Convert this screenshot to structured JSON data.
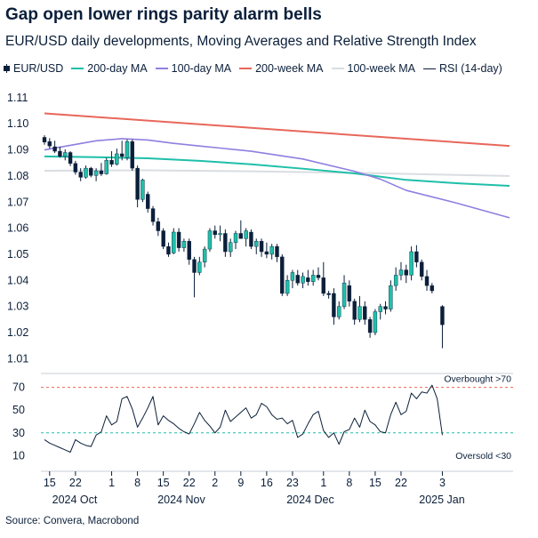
{
  "title": "Gap open lower rings parity alarm bells",
  "subtitle": "EUR/USD daily developments, Moving Averages and Relative Strength Index",
  "source": "Source: Convera, Macrobond",
  "legend": [
    {
      "label": "EUR/USD",
      "icon": "candlestick-icon",
      "color": "#0b1f3a"
    },
    {
      "label": "200-day MA",
      "color": "#1fbfa9"
    },
    {
      "label": "100-day MA",
      "color": "#8f7fe0"
    },
    {
      "label": "200-week MA",
      "color": "#e8675a"
    },
    {
      "label": "100-week MA",
      "color": "#d9dde1"
    },
    {
      "label": "RSI (14-day)",
      "color": "#0b1f3a"
    }
  ],
  "colors": {
    "up": "#1fbfa9",
    "down": "#0b1f3a",
    "ma200d": "#1fbfa9",
    "ma100d": "#8f7fe0",
    "ma200w": "#e8675a",
    "ma100w": "#d9dde1",
    "rsi": "#0b1f3a",
    "overbought": "#e8675a",
    "oversold": "#1fbfa9"
  },
  "chart_data": [
    {
      "type": "candlestick",
      "yticks": [
        "1.11",
        "1.10",
        "1.09",
        "1.08",
        "1.07",
        "1.06",
        "1.05",
        "1.04",
        "1.03",
        "1.02",
        "1.01"
      ],
      "ylim": [
        1.005,
        1.112
      ],
      "x_day_range": [
        0,
        90
      ],
      "ma_200w": {
        "x": [
          0,
          90
        ],
        "y": [
          1.104,
          1.0915
        ]
      },
      "ma_100w": {
        "x": [
          0,
          20,
          40,
          60,
          90
        ],
        "y": [
          1.082,
          1.0822,
          1.0818,
          1.0812,
          1.08
        ]
      },
      "ma_200d": {
        "x": [
          0,
          10,
          20,
          30,
          40,
          50,
          60,
          70,
          80,
          90
        ],
        "y": [
          1.0875,
          1.0872,
          1.0868,
          1.0858,
          1.0845,
          1.0828,
          1.081,
          1.0785,
          1.0772,
          1.0762
        ]
      },
      "ma_100d": {
        "x": [
          0,
          10,
          15,
          20,
          25,
          30,
          40,
          50,
          60,
          65,
          70,
          80,
          90
        ],
        "y": [
          1.09,
          1.0935,
          1.0943,
          1.0938,
          1.0925,
          1.0915,
          1.0895,
          1.0865,
          1.0818,
          1.0788,
          1.0745,
          1.0695,
          1.064
        ]
      },
      "candles": [
        {
          "x": 0,
          "o": 1.0948,
          "h": 1.0956,
          "l": 1.092,
          "c": 1.093
        },
        {
          "x": 1,
          "o": 1.0932,
          "h": 1.0945,
          "l": 1.0905,
          "c": 1.0915
        },
        {
          "x": 2,
          "o": 1.0912,
          "h": 1.0935,
          "l": 1.0888,
          "c": 1.0895
        },
        {
          "x": 3,
          "o": 1.0895,
          "h": 1.0912,
          "l": 1.087,
          "c": 1.0875
        },
        {
          "x": 4,
          "o": 1.0875,
          "h": 1.0902,
          "l": 1.086,
          "c": 1.089
        },
        {
          "x": 5,
          "o": 1.089,
          "h": 1.0895,
          "l": 1.0838,
          "c": 1.0848
        },
        {
          "x": 6,
          "o": 1.0848,
          "h": 1.0858,
          "l": 1.0805,
          "c": 1.0815
        },
        {
          "x": 7,
          "o": 1.0815,
          "h": 1.083,
          "l": 1.078,
          "c": 1.0795
        },
        {
          "x": 8,
          "o": 1.0795,
          "h": 1.084,
          "l": 1.079,
          "c": 1.083
        },
        {
          "x": 9,
          "o": 1.083,
          "h": 1.0835,
          "l": 1.0795,
          "c": 1.0802
        },
        {
          "x": 10,
          "o": 1.0802,
          "h": 1.083,
          "l": 1.078,
          "c": 1.082
        },
        {
          "x": 11,
          "o": 1.082,
          "h": 1.085,
          "l": 1.08,
          "c": 1.0808
        },
        {
          "x": 12,
          "o": 1.0808,
          "h": 1.087,
          "l": 1.0805,
          "c": 1.086
        },
        {
          "x": 13,
          "o": 1.086,
          "h": 1.0895,
          "l": 1.0835,
          "c": 1.0845
        },
        {
          "x": 14,
          "o": 1.0845,
          "h": 1.0905,
          "l": 1.084,
          "c": 1.0885
        },
        {
          "x": 15,
          "o": 1.0885,
          "h": 1.0935,
          "l": 1.086,
          "c": 1.0875
        },
        {
          "x": 16,
          "o": 1.087,
          "h": 1.094,
          "l": 1.086,
          "c": 1.0932
        },
        {
          "x": 17,
          "o": 1.0932,
          "h": 1.094,
          "l": 1.082,
          "c": 1.083
        },
        {
          "x": 18,
          "o": 1.083,
          "h": 1.084,
          "l": 1.068,
          "c": 1.071
        },
        {
          "x": 19,
          "o": 1.071,
          "h": 1.079,
          "l": 1.07,
          "c": 1.0785
        },
        {
          "x": 20,
          "o": 1.073,
          "h": 1.074,
          "l": 1.066,
          "c": 1.0675
        },
        {
          "x": 21,
          "o": 1.0675,
          "h": 1.0685,
          "l": 1.061,
          "c": 1.0625
        },
        {
          "x": 22,
          "o": 1.0625,
          "h": 1.064,
          "l": 1.057,
          "c": 1.059
        },
        {
          "x": 23,
          "o": 1.059,
          "h": 1.06,
          "l": 1.052,
          "c": 1.053
        },
        {
          "x": 24,
          "o": 1.053,
          "h": 1.0545,
          "l": 1.049,
          "c": 1.05
        },
        {
          "x": 25,
          "o": 1.0505,
          "h": 1.06,
          "l": 1.05,
          "c": 1.0585
        },
        {
          "x": 26,
          "o": 1.0585,
          "h": 1.06,
          "l": 1.051,
          "c": 1.0525
        },
        {
          "x": 27,
          "o": 1.0525,
          "h": 1.056,
          "l": 1.051,
          "c": 1.055
        },
        {
          "x": 28,
          "o": 1.055,
          "h": 1.056,
          "l": 1.046,
          "c": 1.048
        },
        {
          "x": 29,
          "o": 1.048,
          "h": 1.049,
          "l": 1.0335,
          "c": 1.043
        },
        {
          "x": 30,
          "o": 1.043,
          "h": 1.049,
          "l": 1.042,
          "c": 1.047
        },
        {
          "x": 31,
          "o": 1.047,
          "h": 1.053,
          "l": 1.045,
          "c": 1.052
        },
        {
          "x": 32,
          "o": 1.052,
          "h": 1.06,
          "l": 1.051,
          "c": 1.059
        },
        {
          "x": 33,
          "o": 1.059,
          "h": 1.061,
          "l": 1.056,
          "c": 1.0575
        },
        {
          "x": 34,
          "o": 1.0575,
          "h": 1.061,
          "l": 1.055,
          "c": 1.058
        },
        {
          "x": 35,
          "o": 1.058,
          "h": 1.0595,
          "l": 1.049,
          "c": 1.051
        },
        {
          "x": 36,
          "o": 1.051,
          "h": 1.056,
          "l": 1.049,
          "c": 1.0545
        },
        {
          "x": 37,
          "o": 1.0545,
          "h": 1.059,
          "l": 1.052,
          "c": 1.058
        },
        {
          "x": 38,
          "o": 1.058,
          "h": 1.063,
          "l": 1.056,
          "c": 1.056
        },
        {
          "x": 39,
          "o": 1.056,
          "h": 1.06,
          "l": 1.053,
          "c": 1.059
        },
        {
          "x": 40,
          "o": 1.0585,
          "h": 1.0595,
          "l": 1.052,
          "c": 1.053
        },
        {
          "x": 41,
          "o": 1.053,
          "h": 1.056,
          "l": 1.05,
          "c": 1.055
        },
        {
          "x": 42,
          "o": 1.055,
          "h": 1.056,
          "l": 1.049,
          "c": 1.051
        },
        {
          "x": 43,
          "o": 1.051,
          "h": 1.0545,
          "l": 1.0485,
          "c": 1.05
        },
        {
          "x": 44,
          "o": 1.05,
          "h": 1.054,
          "l": 1.048,
          "c": 1.053
        },
        {
          "x": 45,
          "o": 1.053,
          "h": 1.054,
          "l": 1.047,
          "c": 1.049
        },
        {
          "x": 46,
          "o": 1.049,
          "h": 1.05,
          "l": 1.034,
          "c": 1.035
        },
        {
          "x": 47,
          "o": 1.035,
          "h": 1.042,
          "l": 1.034,
          "c": 1.04
        },
        {
          "x": 48,
          "o": 1.04,
          "h": 1.044,
          "l": 1.037,
          "c": 1.043
        },
        {
          "x": 49,
          "o": 1.042,
          "h": 1.044,
          "l": 1.038,
          "c": 1.039
        },
        {
          "x": 50,
          "o": 1.039,
          "h": 1.043,
          "l": 1.037,
          "c": 1.0415
        },
        {
          "x": 51,
          "o": 1.041,
          "h": 1.044,
          "l": 1.038,
          "c": 1.0395
        },
        {
          "x": 52,
          "o": 1.0395,
          "h": 1.044,
          "l": 1.038,
          "c": 1.042
        },
        {
          "x": 53,
          "o": 1.042,
          "h": 1.045,
          "l": 1.04,
          "c": 1.041
        },
        {
          "x": 54,
          "o": 1.041,
          "h": 1.047,
          "l": 1.034,
          "c": 1.035
        },
        {
          "x": 55,
          "o": 1.035,
          "h": 1.036,
          "l": 1.033,
          "c": 1.0345
        },
        {
          "x": 56,
          "o": 1.035,
          "h": 1.037,
          "l": 1.023,
          "c": 1.026
        },
        {
          "x": 57,
          "o": 1.026,
          "h": 1.032,
          "l": 1.025,
          "c": 1.03
        },
        {
          "x": 58,
          "o": 1.03,
          "h": 1.042,
          "l": 1.029,
          "c": 1.039
        },
        {
          "x": 59,
          "o": 1.038,
          "h": 1.04,
          "l": 1.03,
          "c": 1.032
        },
        {
          "x": 60,
          "o": 1.032,
          "h": 1.033,
          "l": 1.023,
          "c": 1.025
        },
        {
          "x": 61,
          "o": 1.025,
          "h": 1.034,
          "l": 1.024,
          "c": 1.03
        },
        {
          "x": 62,
          "o": 1.03,
          "h": 1.032,
          "l": 1.023,
          "c": 1.025
        },
        {
          "x": 63,
          "o": 1.025,
          "h": 1.026,
          "l": 1.018,
          "c": 1.02
        },
        {
          "x": 64,
          "o": 1.02,
          "h": 1.029,
          "l": 1.019,
          "c": 1.028
        },
        {
          "x": 65,
          "o": 1.028,
          "h": 1.031,
          "l": 1.025,
          "c": 1.03
        },
        {
          "x": 66,
          "o": 1.03,
          "h": 1.032,
          "l": 1.027,
          "c": 1.029
        },
        {
          "x": 67,
          "o": 1.029,
          "h": 1.04,
          "l": 1.028,
          "c": 1.038
        },
        {
          "x": 68,
          "o": 1.038,
          "h": 1.045,
          "l": 1.036,
          "c": 1.042
        },
        {
          "x": 69,
          "o": 1.042,
          "h": 1.047,
          "l": 1.04,
          "c": 1.044
        },
        {
          "x": 70,
          "o": 1.044,
          "h": 1.046,
          "l": 1.039,
          "c": 1.042
        },
        {
          "x": 71,
          "o": 1.042,
          "h": 1.053,
          "l": 1.04,
          "c": 1.051
        },
        {
          "x": 72,
          "o": 1.051,
          "h": 1.0535,
          "l": 1.045,
          "c": 1.047
        },
        {
          "x": 73,
          "o": 1.047,
          "h": 1.048,
          "l": 1.04,
          "c": 1.0415
        },
        {
          "x": 74,
          "o": 1.0415,
          "h": 1.044,
          "l": 1.036,
          "c": 1.038
        },
        {
          "x": 75,
          "o": 1.038,
          "h": 1.039,
          "l": 1.035,
          "c": 1.036
        },
        {
          "x": 77,
          "o": 1.03,
          "h": 1.0305,
          "l": 1.014,
          "c": 1.023
        }
      ]
    },
    {
      "type": "line",
      "name": "RSI (14-day)",
      "yticks": [
        "70",
        "50",
        "30",
        "10"
      ],
      "ylim": [
        4,
        76
      ],
      "overbought": {
        "value": 70,
        "label": "Overbought >70"
      },
      "oversold": {
        "value": 30,
        "label": "Oversold <30"
      },
      "x": [
        0,
        1,
        2,
        3,
        4,
        5,
        6,
        7,
        8,
        9,
        10,
        11,
        12,
        13,
        14,
        15,
        16,
        17,
        18,
        19,
        20,
        21,
        22,
        23,
        24,
        25,
        26,
        27,
        28,
        29,
        30,
        31,
        32,
        33,
        34,
        35,
        36,
        37,
        38,
        39,
        40,
        41,
        42,
        43,
        44,
        45,
        46,
        47,
        48,
        49,
        50,
        51,
        52,
        53,
        54,
        55,
        56,
        57,
        58,
        59,
        60,
        61,
        62,
        63,
        64,
        65,
        66,
        67,
        68,
        69,
        70,
        71,
        72,
        73,
        74,
        75,
        76,
        77
      ],
      "y": [
        24,
        21,
        19,
        17,
        15,
        13,
        24,
        21,
        19,
        18,
        28,
        31,
        45,
        37,
        40,
        60,
        62,
        51,
        35,
        43,
        52,
        62,
        37,
        45,
        41,
        38,
        34,
        31,
        29,
        38,
        48,
        41,
        36,
        30,
        35,
        50,
        40,
        44,
        48,
        52,
        43,
        46,
        56,
        53,
        46,
        42,
        43,
        38,
        41,
        26,
        29,
        38,
        46,
        49,
        32,
        26,
        30,
        20,
        31,
        33,
        43,
        35,
        50,
        40,
        37,
        31,
        30,
        46,
        57,
        46,
        49,
        65,
        60,
        66,
        65,
        72,
        60,
        28
      ]
    }
  ],
  "x_axis": {
    "ticks": [
      "15",
      "22",
      "1",
      "8",
      "15",
      "22",
      "2",
      "9",
      "16",
      "23",
      "1",
      "8",
      "15",
      "22",
      "3"
    ],
    "periods": [
      "2024 Oct",
      "2024 Nov",
      "2024 Dec",
      "2025 Jan"
    ]
  }
}
